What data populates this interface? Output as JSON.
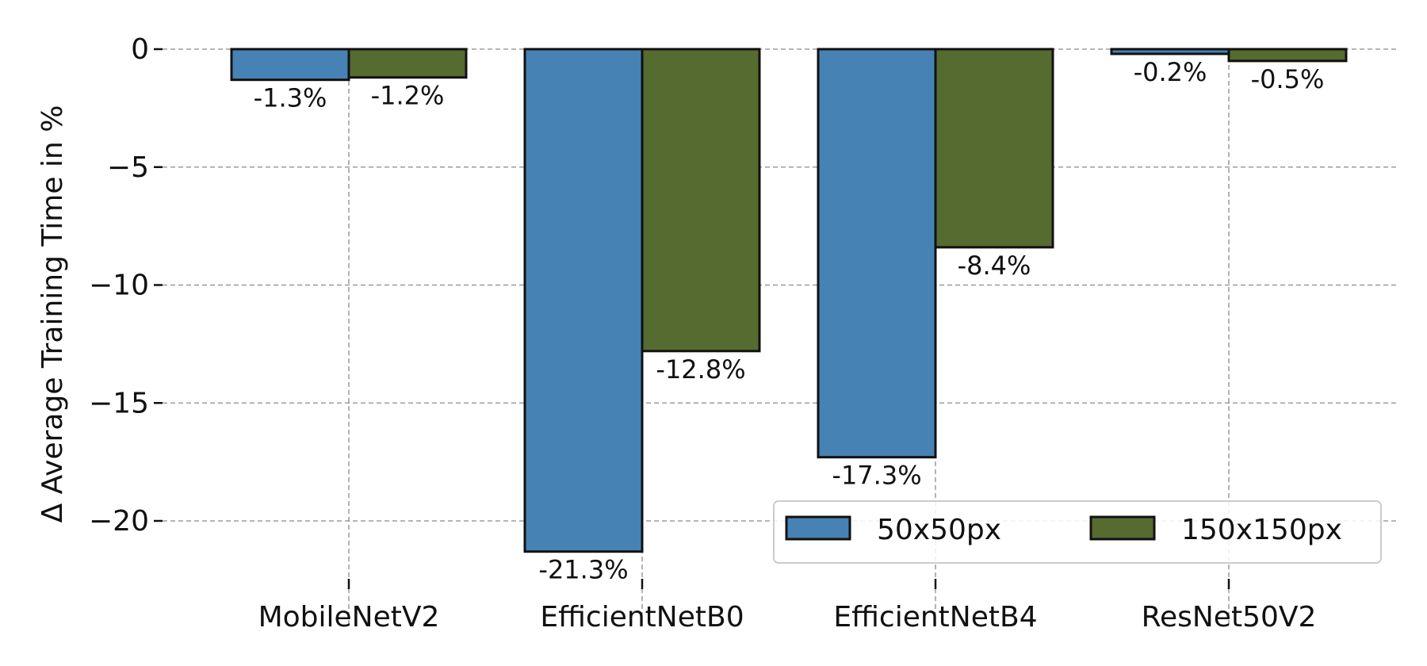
{
  "chart_data": {
    "type": "bar",
    "categories": [
      "MobileNetV2",
      "EfficientNetB0",
      "EfficientNetB4",
      "ResNet50V2"
    ],
    "series": [
      {
        "name": "50x50px",
        "values": [
          -1.3,
          -21.3,
          -17.3,
          -0.2
        ],
        "labels": [
          "-1.3%",
          "-21.3%",
          "-17.3%",
          "-0.2%"
        ],
        "color": "#4682b4"
      },
      {
        "name": "150x150px",
        "values": [
          -1.2,
          -12.8,
          -8.4,
          -0.5
        ],
        "labels": [
          "-1.2%",
          "-12.8%",
          "-8.4%",
          "-0.5%"
        ],
        "color": "#556b2f"
      }
    ],
    "ylabel": "Δ Average Training Time in %",
    "xlabel": "",
    "title": "",
    "ylim": [
      -22.5,
      0
    ],
    "yticks": [
      0,
      -5,
      -10,
      -15,
      -20
    ],
    "ytick_labels": [
      "0",
      "−5",
      "−10",
      "−15",
      "−20"
    ],
    "grid": true,
    "legend_position": "bottom-right"
  }
}
